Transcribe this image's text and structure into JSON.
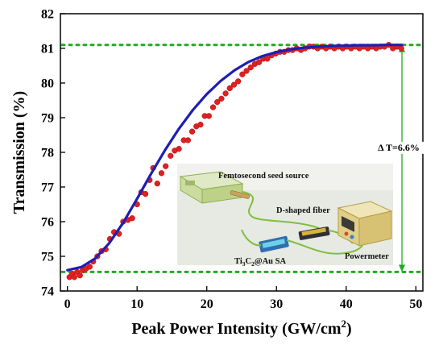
{
  "chart_data": {
    "type": "scatter",
    "title": "",
    "xlabel": "Peak Power Intensity (GW/cm",
    "xlabel_sup": "2",
    "xlabel_close": ")",
    "ylabel": "Transmission (%)",
    "xlim": [
      -1,
      51
    ],
    "ylim": [
      74,
      82
    ],
    "x_ticks": [
      0,
      10,
      20,
      30,
      40,
      50
    ],
    "y_ticks": [
      74,
      75,
      76,
      77,
      78,
      79,
      80,
      81,
      82
    ],
    "grid": false,
    "legend": "none",
    "series": [
      {
        "kind": "scatter",
        "color": "#e02020",
        "points": [
          [
            0.3,
            74.4
          ],
          [
            0.7,
            74.5
          ],
          [
            1.0,
            74.4
          ],
          [
            1.4,
            74.55
          ],
          [
            1.8,
            74.45
          ],
          [
            2.2,
            74.6
          ],
          [
            2.7,
            74.65
          ],
          [
            3.2,
            74.7
          ],
          [
            3.7,
            74.85
          ],
          [
            4.3,
            75.0
          ],
          [
            4.9,
            75.15
          ],
          [
            5.5,
            75.2
          ],
          [
            6.1,
            75.5
          ],
          [
            6.7,
            75.7
          ],
          [
            7.4,
            75.65
          ],
          [
            8.0,
            76.0
          ],
          [
            8.7,
            76.05
          ],
          [
            9.3,
            76.1
          ],
          [
            10.0,
            76.5
          ],
          [
            10.6,
            76.85
          ],
          [
            11.2,
            76.8
          ],
          [
            11.8,
            77.2
          ],
          [
            12.3,
            77.55
          ],
          [
            12.9,
            77.1
          ],
          [
            13.5,
            77.4
          ],
          [
            14.1,
            77.6
          ],
          [
            14.8,
            77.9
          ],
          [
            15.4,
            78.05
          ],
          [
            16.0,
            78.1
          ],
          [
            16.7,
            78.35
          ],
          [
            17.3,
            78.35
          ],
          [
            17.9,
            78.6
          ],
          [
            18.5,
            78.75
          ],
          [
            19.1,
            78.8
          ],
          [
            19.7,
            79.05
          ],
          [
            20.3,
            79.05
          ],
          [
            20.9,
            79.3
          ],
          [
            21.5,
            79.45
          ],
          [
            22.1,
            79.55
          ],
          [
            22.7,
            79.7
          ],
          [
            23.3,
            79.85
          ],
          [
            23.9,
            79.95
          ],
          [
            24.5,
            80.05
          ],
          [
            25.1,
            80.25
          ],
          [
            25.7,
            80.35
          ],
          [
            26.3,
            80.45
          ],
          [
            26.9,
            80.55
          ],
          [
            27.5,
            80.6
          ],
          [
            28.1,
            80.7
          ],
          [
            28.7,
            80.7
          ],
          [
            29.3,
            80.8
          ],
          [
            29.9,
            80.85
          ],
          [
            30.5,
            80.9
          ],
          [
            31.1,
            80.9
          ],
          [
            31.7,
            80.95
          ],
          [
            32.3,
            80.95
          ],
          [
            32.9,
            81.0
          ],
          [
            33.5,
            80.95
          ],
          [
            34.1,
            81.0
          ],
          [
            34.7,
            81.05
          ],
          [
            35.3,
            81.05
          ],
          [
            35.9,
            81.0
          ],
          [
            36.5,
            81.05
          ],
          [
            37.1,
            81.0
          ],
          [
            37.7,
            81.05
          ],
          [
            38.3,
            81.0
          ],
          [
            38.9,
            81.05
          ],
          [
            39.5,
            81.0
          ],
          [
            40.1,
            81.05
          ],
          [
            40.7,
            81.0
          ],
          [
            41.3,
            81.05
          ],
          [
            41.9,
            81.0
          ],
          [
            42.5,
            81.05
          ],
          [
            43.1,
            81.0
          ],
          [
            43.7,
            81.05
          ],
          [
            44.3,
            81.0
          ],
          [
            44.9,
            81.05
          ],
          [
            45.5,
            81.05
          ],
          [
            46.1,
            81.1
          ],
          [
            46.7,
            81.0
          ],
          [
            47.3,
            81.05
          ],
          [
            47.9,
            81.0
          ]
        ]
      },
      {
        "kind": "fit-line",
        "color": "#1e1eb4",
        "x": [
          0.0,
          2.0,
          4.0,
          6.0,
          8.0,
          10.0,
          12.0,
          14.0,
          16.0,
          18.0,
          20.0,
          22.0,
          24.0,
          26.0,
          28.0,
          30.0,
          32.0,
          34.0,
          36.0,
          38.0,
          40.0,
          42.0,
          44.0,
          46.0,
          48.0
        ],
        "y": [
          74.6,
          74.69,
          74.94,
          75.38,
          75.97,
          76.66,
          77.38,
          78.06,
          78.68,
          79.22,
          79.68,
          80.06,
          80.37,
          80.61,
          80.78,
          80.89,
          80.97,
          81.02,
          81.05,
          81.07,
          81.08,
          81.09,
          81.09,
          81.1,
          81.1
        ]
      }
    ],
    "reference_lines": [
      {
        "kind": "horizontal-dotted",
        "y": 81.1,
        "color": "#22aa22"
      },
      {
        "kind": "horizontal-dotted",
        "y": 74.55,
        "color": "#22aa22"
      }
    ],
    "annotation": {
      "text": "Δ T=6.6%",
      "x": 48,
      "y_from": 74.55,
      "y_to": 81.1,
      "arrow_color": "#22aa22"
    },
    "inset": {
      "labels": {
        "source": "Femtosecond seed source",
        "fiber": "D-shaped fiber",
        "sa_main": "Ti",
        "sa_sub": "3",
        "sa_rest": "C",
        "sa_sub2": "2",
        "sa_end": "@Au SA",
        "meter": "Powermeter"
      }
    }
  }
}
